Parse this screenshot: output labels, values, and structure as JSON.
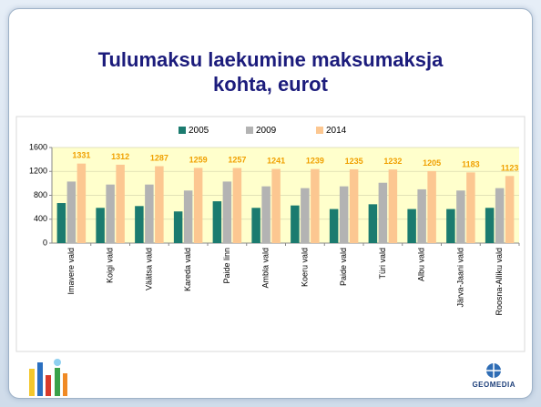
{
  "chart_data": {
    "type": "bar",
    "title": "Tulumaksu laekumine maksumaksja kohta, eurot",
    "categories": [
      "Imavere vald",
      "Koigi vald",
      "Väätsa vald",
      "Kareda vald",
      "Paide linn",
      "Ambla vald",
      "Koeru vald",
      "Paide vald",
      "Türi vald",
      "Albu vald",
      "Järva-Jaani vald",
      "Roosna-Alliku vald"
    ],
    "series": [
      {
        "name": "2005",
        "color": "#1b7b6f",
        "values": [
          670,
          590,
          620,
          530,
          700,
          590,
          630,
          570,
          650,
          570,
          570,
          590
        ]
      },
      {
        "name": "2009",
        "color": "#b3b3b3",
        "values": [
          1030,
          980,
          980,
          880,
          1030,
          950,
          920,
          950,
          1010,
          900,
          880,
          920
        ]
      },
      {
        "name": "2014",
        "color": "#fcc791",
        "values": [
          1331,
          1312,
          1287,
          1259,
          1257,
          1241,
          1239,
          1235,
          1232,
          1205,
          1183,
          1123
        ],
        "data_labels": true,
        "label_color": "#f0a000"
      }
    ],
    "ylim": [
      0,
      1600
    ],
    "yticks": [
      0,
      400,
      800,
      1200,
      1600
    ],
    "grid": true,
    "plot_background": "#ffffcc",
    "legend": "top"
  },
  "logo": "GEOMEDIA"
}
